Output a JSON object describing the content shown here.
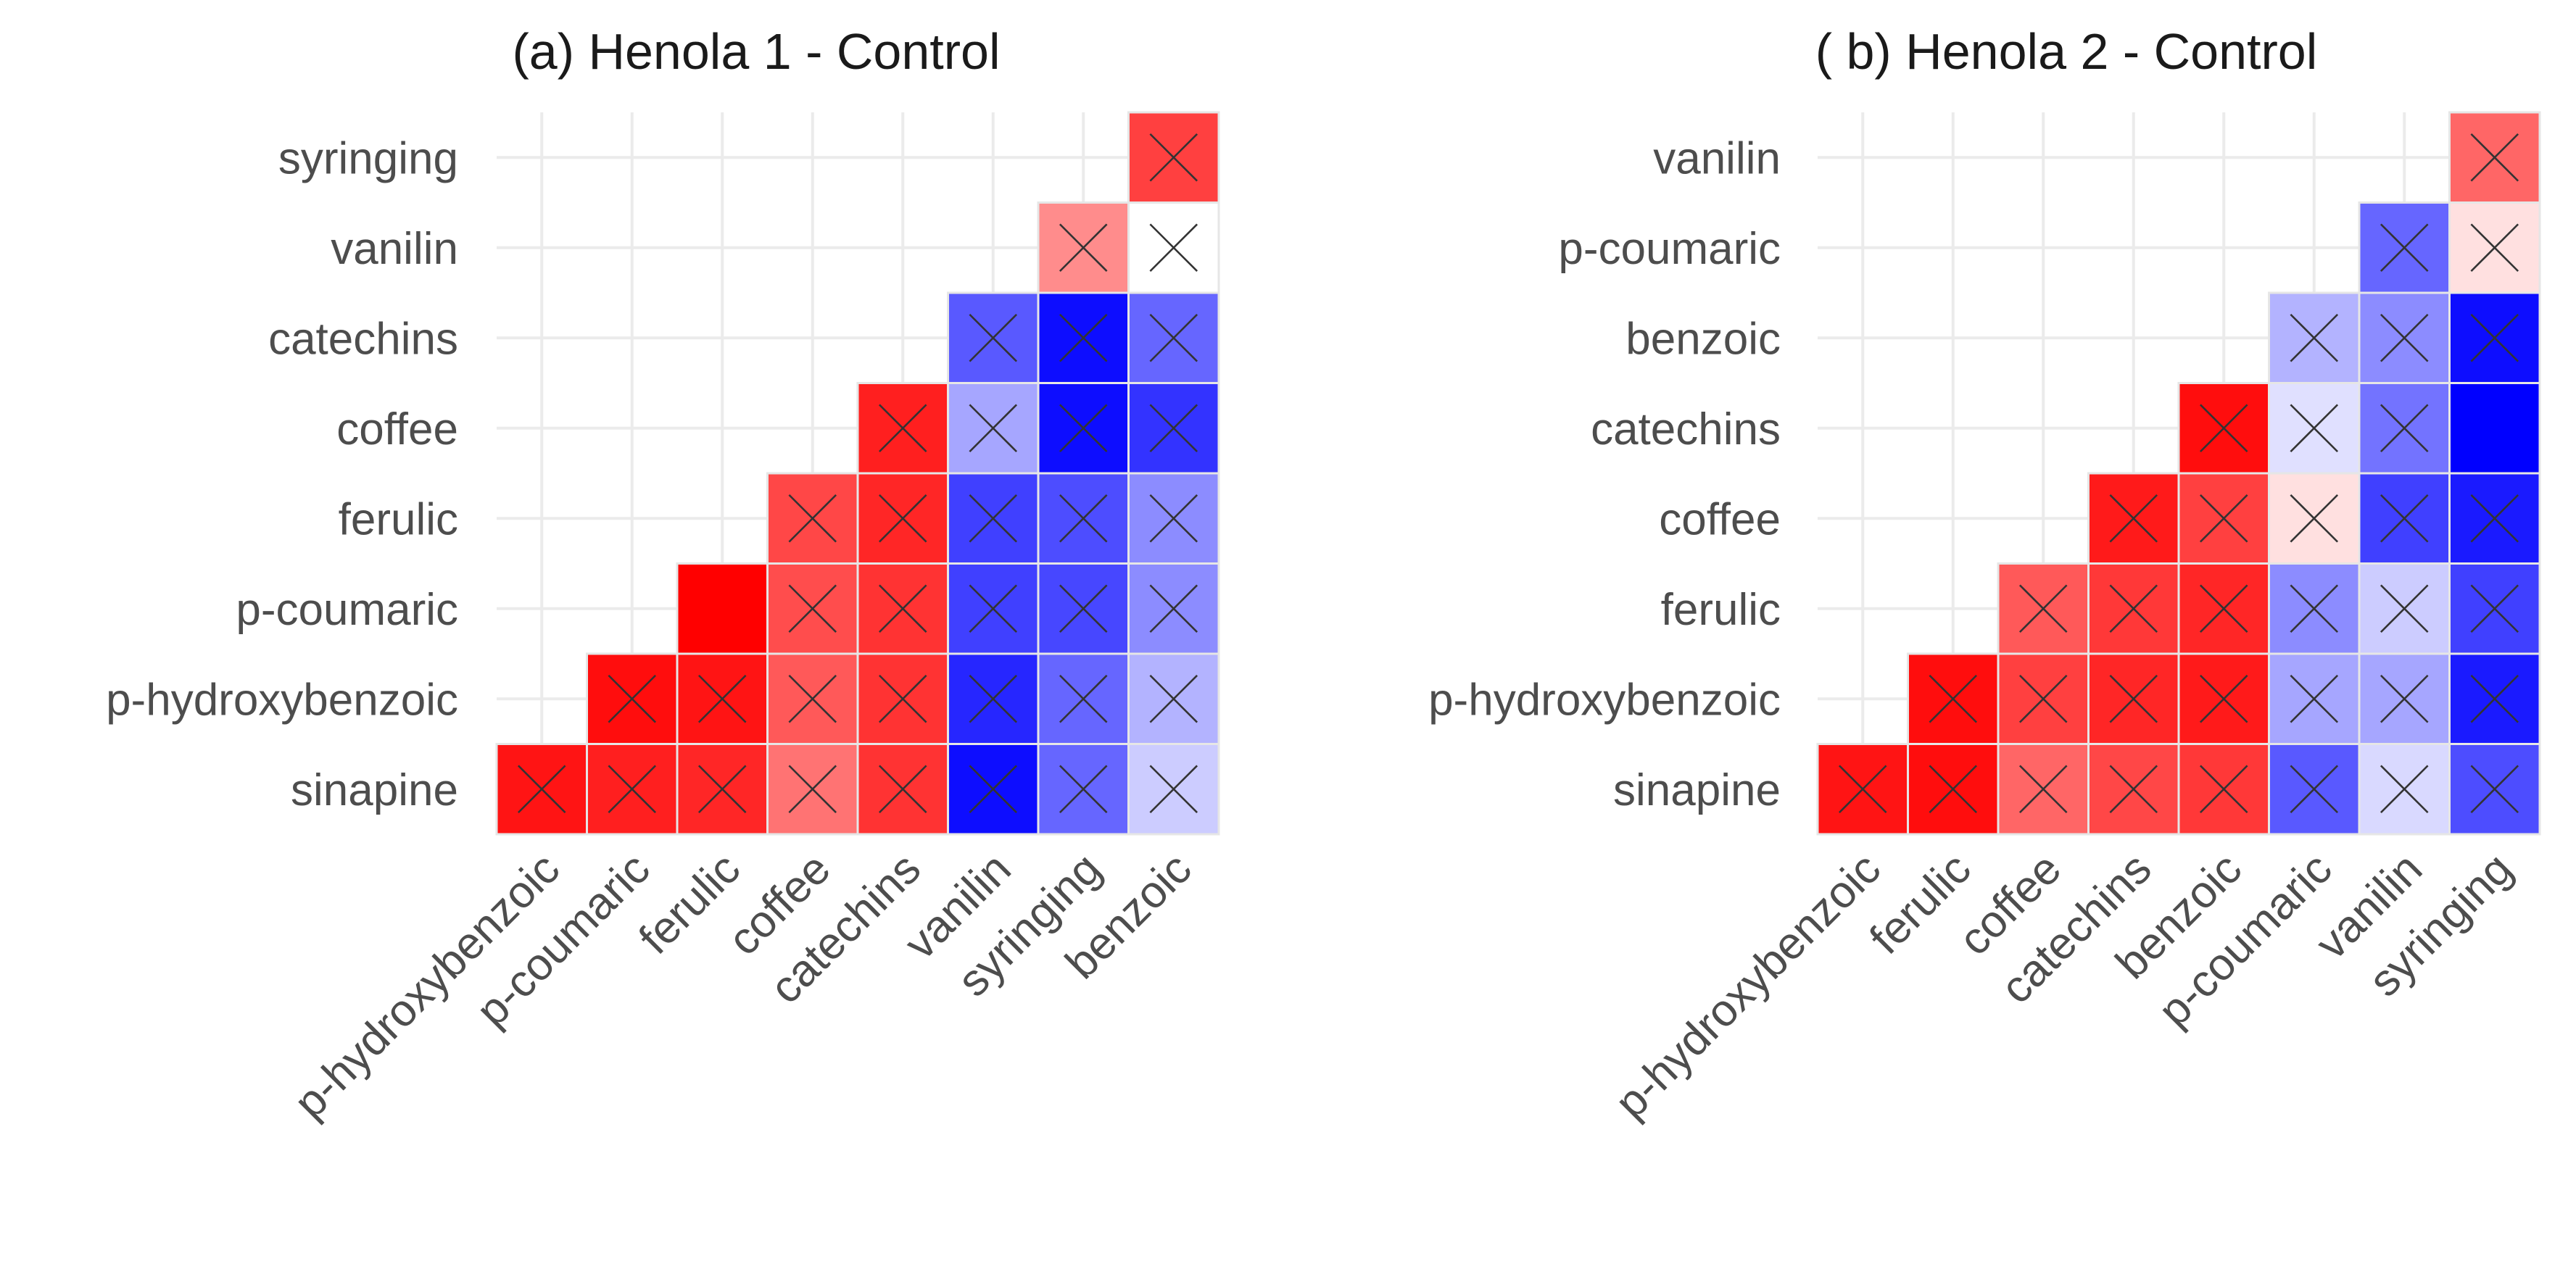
{
  "colors": {
    "low": "#0000ff",
    "mid": "#ffffff",
    "high": "#ff0000",
    "cross": "#333333",
    "grid": "#ebebeb"
  },
  "chart_data": [
    {
      "type": "heatmap",
      "title": "(a) Henola 1 - Control",
      "y_labels": [
        "syringing",
        "vanilin",
        "catechins",
        "coffee",
        "ferulic",
        "p-coumaric",
        "p-hydroxybenzoic",
        "sinapine"
      ],
      "x_labels": [
        "p-hydroxybenzoic",
        "p-coumaric",
        "ferulic",
        "coffee",
        "catechins",
        "vanilin",
        "syringing",
        "benzoic"
      ],
      "value_range": [
        -1,
        1
      ],
      "cells": [
        {
          "y": "syringing",
          "x": "benzoic",
          "value": 0.75,
          "crossed": true
        },
        {
          "y": "vanilin",
          "x": "syringing",
          "value": 0.45,
          "crossed": true
        },
        {
          "y": "vanilin",
          "x": "benzoic",
          "value": 0.0,
          "crossed": true
        },
        {
          "y": "catechins",
          "x": "vanilin",
          "value": -0.65,
          "crossed": true
        },
        {
          "y": "catechins",
          "x": "syringing",
          "value": -0.95,
          "crossed": true
        },
        {
          "y": "catechins",
          "x": "benzoic",
          "value": -0.6,
          "crossed": true
        },
        {
          "y": "coffee",
          "x": "catechins",
          "value": 0.88,
          "crossed": true
        },
        {
          "y": "coffee",
          "x": "vanilin",
          "value": -0.35,
          "crossed": true
        },
        {
          "y": "coffee",
          "x": "syringing",
          "value": -0.95,
          "crossed": true
        },
        {
          "y": "coffee",
          "x": "benzoic",
          "value": -0.8,
          "crossed": true
        },
        {
          "y": "ferulic",
          "x": "coffee",
          "value": 0.72,
          "crossed": true
        },
        {
          "y": "ferulic",
          "x": "catechins",
          "value": 0.85,
          "crossed": true
        },
        {
          "y": "ferulic",
          "x": "vanilin",
          "value": -0.75,
          "crossed": true
        },
        {
          "y": "ferulic",
          "x": "syringing",
          "value": -0.7,
          "crossed": true
        },
        {
          "y": "ferulic",
          "x": "benzoic",
          "value": -0.45,
          "crossed": true
        },
        {
          "y": "p-coumaric",
          "x": "ferulic",
          "value": 1.0,
          "crossed": false
        },
        {
          "y": "p-coumaric",
          "x": "coffee",
          "value": 0.7,
          "crossed": true
        },
        {
          "y": "p-coumaric",
          "x": "catechins",
          "value": 0.8,
          "crossed": true
        },
        {
          "y": "p-coumaric",
          "x": "vanilin",
          "value": -0.75,
          "crossed": true
        },
        {
          "y": "p-coumaric",
          "x": "syringing",
          "value": -0.72,
          "crossed": true
        },
        {
          "y": "p-coumaric",
          "x": "benzoic",
          "value": -0.45,
          "crossed": true
        },
        {
          "y": "p-hydroxybenzoic",
          "x": "p-coumaric",
          "value": 0.95,
          "crossed": true
        },
        {
          "y": "p-hydroxybenzoic",
          "x": "ferulic",
          "value": 0.92,
          "crossed": true
        },
        {
          "y": "p-hydroxybenzoic",
          "x": "coffee",
          "value": 0.65,
          "crossed": true
        },
        {
          "y": "p-hydroxybenzoic",
          "x": "catechins",
          "value": 0.8,
          "crossed": true
        },
        {
          "y": "p-hydroxybenzoic",
          "x": "vanilin",
          "value": -0.85,
          "crossed": true
        },
        {
          "y": "p-hydroxybenzoic",
          "x": "syringing",
          "value": -0.6,
          "crossed": true
        },
        {
          "y": "p-hydroxybenzoic",
          "x": "benzoic",
          "value": -0.3,
          "crossed": true
        },
        {
          "y": "sinapine",
          "x": "p-hydroxybenzoic",
          "value": 0.92,
          "crossed": true
        },
        {
          "y": "sinapine",
          "x": "p-coumaric",
          "value": 0.88,
          "crossed": true
        },
        {
          "y": "sinapine",
          "x": "ferulic",
          "value": 0.85,
          "crossed": true
        },
        {
          "y": "sinapine",
          "x": "coffee",
          "value": 0.55,
          "crossed": true
        },
        {
          "y": "sinapine",
          "x": "catechins",
          "value": 0.8,
          "crossed": true
        },
        {
          "y": "sinapine",
          "x": "vanilin",
          "value": -0.95,
          "crossed": true
        },
        {
          "y": "sinapine",
          "x": "syringing",
          "value": -0.6,
          "crossed": true
        },
        {
          "y": "sinapine",
          "x": "benzoic",
          "value": -0.2,
          "crossed": true
        }
      ]
    },
    {
      "type": "heatmap",
      "title": "( b) Henola 2 - Control",
      "y_labels": [
        "vanilin",
        "p-coumaric",
        "benzoic",
        "catechins",
        "coffee",
        "ferulic",
        "p-hydroxybenzoic",
        "sinapine"
      ],
      "x_labels": [
        "p-hydroxybenzoic",
        "ferulic",
        "coffee",
        "catechins",
        "benzoic",
        "p-coumaric",
        "vanilin",
        "syringing"
      ],
      "value_range": [
        -1,
        1
      ],
      "cells": [
        {
          "y": "vanilin",
          "x": "syringing",
          "value": 0.6,
          "crossed": true
        },
        {
          "y": "p-coumaric",
          "x": "vanilin",
          "value": -0.6,
          "crossed": true
        },
        {
          "y": "p-coumaric",
          "x": "syringing",
          "value": 0.12,
          "crossed": true
        },
        {
          "y": "benzoic",
          "x": "p-coumaric",
          "value": -0.3,
          "crossed": true
        },
        {
          "y": "benzoic",
          "x": "vanilin",
          "value": -0.45,
          "crossed": true
        },
        {
          "y": "benzoic",
          "x": "syringing",
          "value": -0.95,
          "crossed": true
        },
        {
          "y": "catechins",
          "x": "benzoic",
          "value": 0.95,
          "crossed": true
        },
        {
          "y": "catechins",
          "x": "p-coumaric",
          "value": -0.12,
          "crossed": true
        },
        {
          "y": "catechins",
          "x": "vanilin",
          "value": -0.55,
          "crossed": true
        },
        {
          "y": "catechins",
          "x": "syringing",
          "value": -1.0,
          "crossed": false
        },
        {
          "y": "coffee",
          "x": "catechins",
          "value": 0.9,
          "crossed": true
        },
        {
          "y": "coffee",
          "x": "benzoic",
          "value": 0.75,
          "crossed": true
        },
        {
          "y": "coffee",
          "x": "p-coumaric",
          "value": 0.12,
          "crossed": true
        },
        {
          "y": "coffee",
          "x": "vanilin",
          "value": -0.75,
          "crossed": true
        },
        {
          "y": "coffee",
          "x": "syringing",
          "value": -0.9,
          "crossed": true
        },
        {
          "y": "ferulic",
          "x": "coffee",
          "value": 0.65,
          "crossed": true
        },
        {
          "y": "ferulic",
          "x": "catechins",
          "value": 0.78,
          "crossed": true
        },
        {
          "y": "ferulic",
          "x": "benzoic",
          "value": 0.85,
          "crossed": true
        },
        {
          "y": "ferulic",
          "x": "p-coumaric",
          "value": -0.45,
          "crossed": true
        },
        {
          "y": "ferulic",
          "x": "vanilin",
          "value": -0.2,
          "crossed": true
        },
        {
          "y": "ferulic",
          "x": "syringing",
          "value": -0.75,
          "crossed": true
        },
        {
          "y": "p-hydroxybenzoic",
          "x": "ferulic",
          "value": 0.95,
          "crossed": true
        },
        {
          "y": "p-hydroxybenzoic",
          "x": "coffee",
          "value": 0.75,
          "crossed": true
        },
        {
          "y": "p-hydroxybenzoic",
          "x": "catechins",
          "value": 0.85,
          "crossed": true
        },
        {
          "y": "p-hydroxybenzoic",
          "x": "benzoic",
          "value": 0.9,
          "crossed": true
        },
        {
          "y": "p-hydroxybenzoic",
          "x": "p-coumaric",
          "value": -0.35,
          "crossed": true
        },
        {
          "y": "p-hydroxybenzoic",
          "x": "vanilin",
          "value": -0.35,
          "crossed": true
        },
        {
          "y": "p-hydroxybenzoic",
          "x": "syringing",
          "value": -0.9,
          "crossed": true
        },
        {
          "y": "sinapine",
          "x": "p-hydroxybenzoic",
          "value": 0.92,
          "crossed": true
        },
        {
          "y": "sinapine",
          "x": "ferulic",
          "value": 0.95,
          "crossed": true
        },
        {
          "y": "sinapine",
          "x": "coffee",
          "value": 0.6,
          "crossed": true
        },
        {
          "y": "sinapine",
          "x": "catechins",
          "value": 0.72,
          "crossed": true
        },
        {
          "y": "sinapine",
          "x": "benzoic",
          "value": 0.78,
          "crossed": true
        },
        {
          "y": "sinapine",
          "x": "p-coumaric",
          "value": -0.65,
          "crossed": true
        },
        {
          "y": "sinapine",
          "x": "vanilin",
          "value": -0.15,
          "crossed": true
        },
        {
          "y": "sinapine",
          "x": "syringing",
          "value": -0.7,
          "crossed": true
        }
      ]
    }
  ]
}
